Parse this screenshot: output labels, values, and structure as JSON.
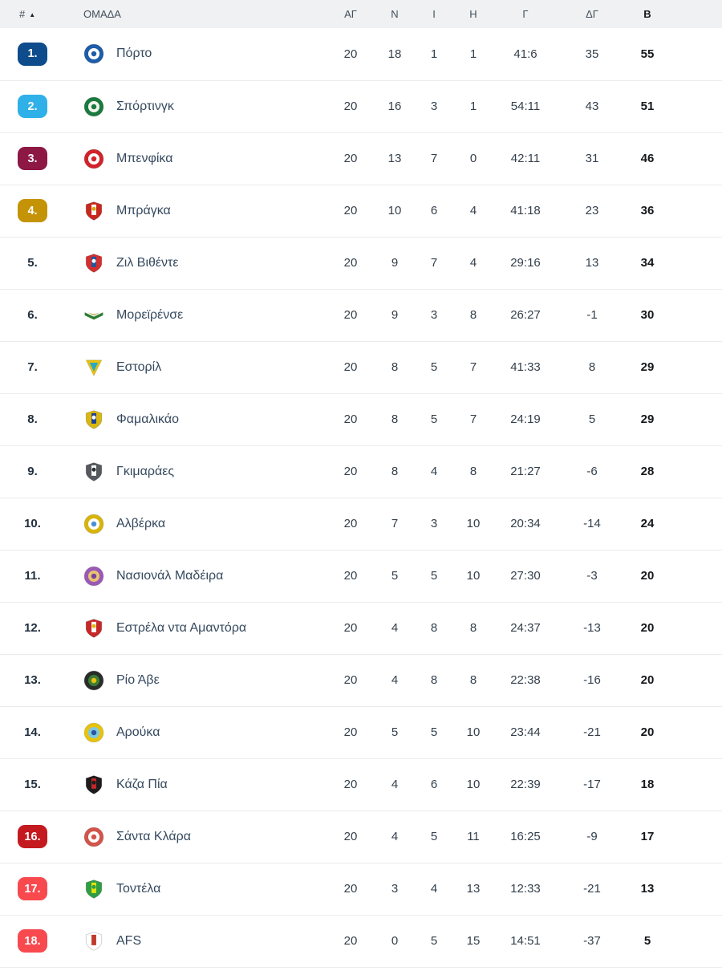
{
  "header": {
    "rank_label": "#",
    "sort_icon": "▲",
    "team_label": "ΟΜΑΔΑ",
    "stat_columns": [
      "ΑΓ",
      "Ν",
      "Ι",
      "Η",
      "Γ",
      "ΔΓ",
      "Β"
    ]
  },
  "colors": {
    "badge_first": "#0e4c8c",
    "badge_second": "#2fb0e8",
    "badge_third": "#8c1843",
    "badge_fourth": "#c49306",
    "badge_relegation_playoff": "#c41a1f",
    "badge_relegation": "#f8494f",
    "header_bg": "#f0f1f2",
    "row_divider": "#ececec",
    "team_text": "#35495e",
    "points_text": "#15171a"
  },
  "rows": [
    {
      "rank": "1.",
      "badge": "#0e4c8c",
      "name": "Πόρτο",
      "logo": {
        "shape": "circle",
        "colors": [
          "#1d5ca8",
          "#ffffff",
          "#1d5ca8"
        ]
      },
      "stats": [
        "20",
        "18",
        "1",
        "1",
        "41:6",
        "35",
        "55"
      ]
    },
    {
      "rank": "2.",
      "badge": "#2fb0e8",
      "name": "Σπόρτινγκ",
      "logo": {
        "shape": "circle",
        "colors": [
          "#1b7a3d",
          "#f2f6ee",
          "#1b7a3d"
        ]
      },
      "stats": [
        "20",
        "16",
        "3",
        "1",
        "54:11",
        "43",
        "51"
      ]
    },
    {
      "rank": "3.",
      "badge": "#8c1843",
      "name": "Μπενφίκα",
      "logo": {
        "shape": "circle",
        "colors": [
          "#d2232a",
          "#ffffff",
          "#d2232a"
        ]
      },
      "stats": [
        "20",
        "13",
        "7",
        "0",
        "42:11",
        "31",
        "46"
      ]
    },
    {
      "rank": "4.",
      "badge": "#c49306",
      "name": "Μπράγκα",
      "logo": {
        "shape": "shield",
        "colors": [
          "#c8281e",
          "#ffffff",
          "#d9a50f"
        ]
      },
      "stats": [
        "20",
        "10",
        "6",
        "4",
        "41:18",
        "23",
        "36"
      ]
    },
    {
      "rank": "5.",
      "badge": null,
      "name": "Ζιλ Βιθέντε",
      "logo": {
        "shape": "shield",
        "colors": [
          "#d32f2f",
          "#1e56a0",
          "#ffffff"
        ]
      },
      "stats": [
        "20",
        "9",
        "7",
        "4",
        "29:16",
        "13",
        "34"
      ]
    },
    {
      "rank": "6.",
      "badge": null,
      "name": "Μορεϊρένσε",
      "logo": {
        "shape": "wing",
        "colors": [
          "#2e7d32",
          "#b8a24a"
        ]
      },
      "stats": [
        "20",
        "9",
        "3",
        "8",
        "26:27",
        "-1",
        "30"
      ]
    },
    {
      "rank": "7.",
      "badge": null,
      "name": "Εστορίλ",
      "logo": {
        "shape": "triangle",
        "colors": [
          "#e8c20c",
          "#2aa8c4"
        ]
      },
      "stats": [
        "20",
        "8",
        "5",
        "7",
        "41:33",
        "8",
        "29"
      ]
    },
    {
      "rank": "8.",
      "badge": null,
      "name": "Φαμαλικάο",
      "logo": {
        "shape": "shield",
        "colors": [
          "#d9b70f",
          "#1c3f94",
          "#ffffff"
        ]
      },
      "stats": [
        "20",
        "8",
        "5",
        "7",
        "24:19",
        "5",
        "29"
      ]
    },
    {
      "rank": "9.",
      "badge": null,
      "name": "Γκιμαράες",
      "logo": {
        "shape": "shield",
        "colors": [
          "#55585c",
          "#ffffff",
          "#2b2d30"
        ]
      },
      "stats": [
        "20",
        "8",
        "4",
        "8",
        "21:27",
        "-6",
        "28"
      ]
    },
    {
      "rank": "10.",
      "badge": null,
      "name": "Αλβέρκα",
      "logo": {
        "shape": "circle",
        "colors": [
          "#d9b40a",
          "#ffffff",
          "#4a8fd4"
        ]
      },
      "stats": [
        "20",
        "7",
        "3",
        "10",
        "20:34",
        "-14",
        "24"
      ]
    },
    {
      "rank": "11.",
      "badge": null,
      "name": "Νασιονάλ Μαδέιρα",
      "logo": {
        "shape": "circle",
        "colors": [
          "#9b59b6",
          "#e7c56e",
          "#7b3f9e"
        ]
      },
      "stats": [
        "20",
        "5",
        "5",
        "10",
        "27:30",
        "-3",
        "20"
      ]
    },
    {
      "rank": "12.",
      "badge": null,
      "name": "Εστρέλα ντα Αμαντόρα",
      "logo": {
        "shape": "shield",
        "colors": [
          "#c62828",
          "#ffffff",
          "#e8b70c"
        ]
      },
      "stats": [
        "20",
        "4",
        "8",
        "8",
        "24:37",
        "-13",
        "20"
      ]
    },
    {
      "rank": "13.",
      "badge": null,
      "name": "Ρίο Άβε",
      "logo": {
        "shape": "circle",
        "colors": [
          "#2a2e2a",
          "#3e7d35",
          "#e8c20c"
        ]
      },
      "stats": [
        "20",
        "4",
        "8",
        "8",
        "22:38",
        "-16",
        "20"
      ]
    },
    {
      "rank": "14.",
      "badge": null,
      "name": "Αρούκα",
      "logo": {
        "shape": "circle",
        "colors": [
          "#e8c20c",
          "#7ec8e3",
          "#2a56a0"
        ]
      },
      "stats": [
        "20",
        "5",
        "5",
        "10",
        "23:44",
        "-21",
        "20"
      ]
    },
    {
      "rank": "15.",
      "badge": null,
      "name": "Κάζα Πία",
      "logo": {
        "shape": "shield",
        "colors": [
          "#1c1c1e",
          "#c62828",
          "#1c1c1e"
        ]
      },
      "stats": [
        "20",
        "4",
        "6",
        "10",
        "22:39",
        "-17",
        "18"
      ]
    },
    {
      "rank": "16.",
      "badge": "#c41a1f",
      "name": "Σάντα Κλάρα",
      "logo": {
        "shape": "circle",
        "colors": [
          "#d2544a",
          "#ffffff",
          "#d2544a"
        ]
      },
      "stats": [
        "20",
        "4",
        "5",
        "11",
        "16:25",
        "-9",
        "17"
      ]
    },
    {
      "rank": "17.",
      "badge": "#f8494f",
      "name": "Τοντέλα",
      "logo": {
        "shape": "shield",
        "colors": [
          "#2e9e44",
          "#e8e20c",
          "#2e9e44"
        ]
      },
      "stats": [
        "20",
        "3",
        "4",
        "13",
        "12:33",
        "-21",
        "13"
      ]
    },
    {
      "rank": "18.",
      "badge": "#f8494f",
      "name": "AFS",
      "logo": {
        "shape": "shield",
        "colors": [
          "#ffffff",
          "#c0392b",
          "#c0392b"
        ]
      },
      "stats": [
        "20",
        "0",
        "5",
        "15",
        "14:51",
        "-37",
        "5"
      ]
    }
  ]
}
